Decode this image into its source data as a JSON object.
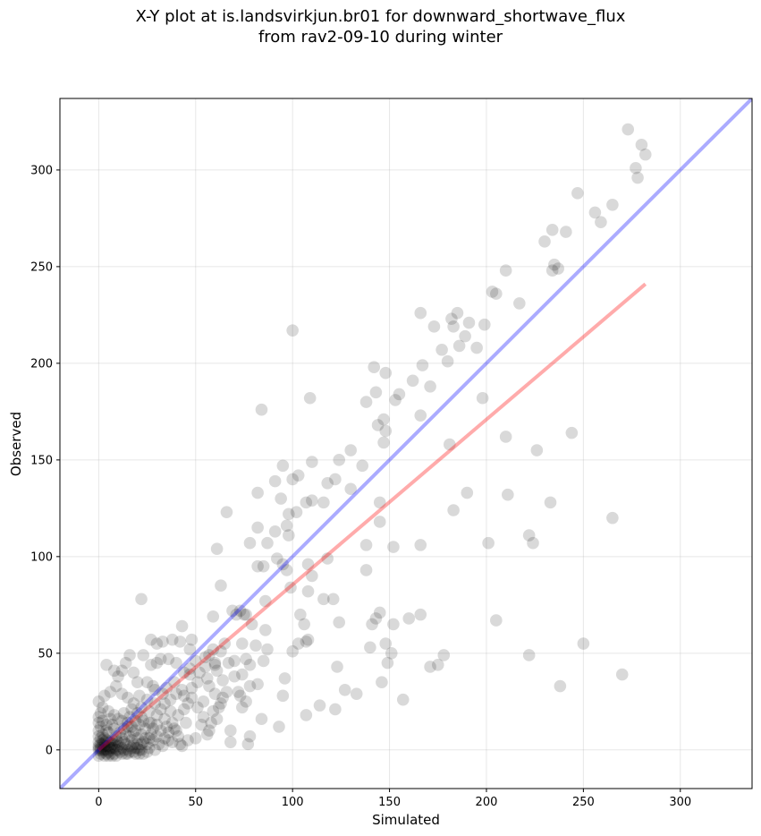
{
  "chart_data": {
    "type": "scatter",
    "title_line1": "X-Y plot at is.landsvirkjun.br01 for downward_shortwave_flux",
    "title_line2": "from rav2-09-10 during winter",
    "xlabel": "Simulated",
    "ylabel": "Observed",
    "xlim": [
      -20,
      337
    ],
    "ylim": [
      -20,
      337
    ],
    "xticks": [
      0,
      50,
      100,
      150,
      200,
      250,
      300
    ],
    "yticks": [
      0,
      50,
      100,
      150,
      200,
      250,
      300
    ],
    "grid": true,
    "point_color": "#000000",
    "identity_line": {
      "color": "#0000ff",
      "x": [
        -20,
        337
      ],
      "y": [
        -20,
        337
      ]
    },
    "fit_line": {
      "color": "#ff0000",
      "x": [
        0,
        282
      ],
      "y": [
        0,
        241
      ]
    },
    "points": [
      [
        273,
        321
      ],
      [
        280,
        313
      ],
      [
        277,
        301
      ],
      [
        282,
        308
      ],
      [
        278,
        296
      ],
      [
        247,
        288
      ],
      [
        256,
        278
      ],
      [
        265,
        282
      ],
      [
        259,
        273
      ],
      [
        230,
        263
      ],
      [
        234,
        269
      ],
      [
        241,
        268
      ],
      [
        235,
        251
      ],
      [
        237,
        249
      ],
      [
        234,
        248
      ],
      [
        210,
        248
      ],
      [
        203,
        237
      ],
      [
        205,
        236
      ],
      [
        217,
        231
      ],
      [
        166,
        226
      ],
      [
        182,
        223
      ],
      [
        185,
        226
      ],
      [
        199,
        220
      ],
      [
        191,
        221
      ],
      [
        173,
        219
      ],
      [
        177,
        207
      ],
      [
        183,
        219
      ],
      [
        180,
        201
      ],
      [
        189,
        214
      ],
      [
        186,
        209
      ],
      [
        195,
        208
      ],
      [
        100,
        217
      ],
      [
        142,
        198
      ],
      [
        148,
        195
      ],
      [
        162,
        191
      ],
      [
        167,
        199
      ],
      [
        153,
        181
      ],
      [
        155,
        184
      ],
      [
        138,
        180
      ],
      [
        143,
        185
      ],
      [
        171,
        188
      ],
      [
        166,
        173
      ],
      [
        147,
        171
      ],
      [
        144,
        168
      ],
      [
        148,
        165
      ],
      [
        147,
        159
      ],
      [
        181,
        158
      ],
      [
        198,
        182
      ],
      [
        210,
        162
      ],
      [
        244,
        164
      ],
      [
        109,
        182
      ],
      [
        84,
        176
      ],
      [
        226,
        155
      ],
      [
        110,
        149
      ],
      [
        124,
        150
      ],
      [
        130,
        155
      ],
      [
        136,
        147
      ],
      [
        95,
        147
      ],
      [
        118,
        138
      ],
      [
        122,
        140
      ],
      [
        130,
        135
      ],
      [
        91,
        139
      ],
      [
        94,
        130
      ],
      [
        100,
        140
      ],
      [
        103,
        142
      ],
      [
        107,
        128
      ],
      [
        110,
        129
      ],
      [
        116,
        128
      ],
      [
        98,
        122
      ],
      [
        91,
        113
      ],
      [
        97,
        116
      ],
      [
        98,
        111
      ],
      [
        82,
        133
      ],
      [
        66,
        123
      ],
      [
        82,
        115
      ],
      [
        102,
        123
      ],
      [
        87,
        107
      ],
      [
        183,
        124
      ],
      [
        190,
        133
      ],
      [
        211,
        132
      ],
      [
        233,
        128
      ],
      [
        145,
        128
      ],
      [
        145,
        118
      ],
      [
        138,
        106
      ],
      [
        152,
        105
      ],
      [
        166,
        106
      ],
      [
        201,
        107
      ],
      [
        222,
        111
      ],
      [
        224,
        107
      ],
      [
        265,
        120
      ],
      [
        85,
        95
      ],
      [
        82,
        95
      ],
      [
        61,
        104
      ],
      [
        78,
        107
      ],
      [
        92,
        99
      ],
      [
        95,
        96
      ],
      [
        97,
        93
      ],
      [
        110,
        90
      ],
      [
        108,
        96
      ],
      [
        118,
        99
      ],
      [
        108,
        82
      ],
      [
        99,
        84
      ],
      [
        63,
        85
      ],
      [
        86,
        77
      ],
      [
        138,
        93
      ],
      [
        121,
        78
      ],
      [
        116,
        78
      ],
      [
        104,
        70
      ],
      [
        106,
        65
      ],
      [
        124,
        66
      ],
      [
        141,
        65
      ],
      [
        152,
        65
      ],
      [
        145,
        71
      ],
      [
        143,
        68
      ],
      [
        160,
        68
      ],
      [
        166,
        70
      ],
      [
        205,
        67
      ],
      [
        73,
        72
      ],
      [
        76,
        70
      ],
      [
        75,
        70
      ],
      [
        69,
        72
      ],
      [
        71,
        70
      ],
      [
        79,
        65
      ],
      [
        59,
        69
      ],
      [
        86,
        62
      ],
      [
        65,
        55
      ],
      [
        74,
        55
      ],
      [
        81,
        54
      ],
      [
        87,
        52
      ],
      [
        78,
        44
      ],
      [
        85,
        46
      ],
      [
        103,
        55
      ],
      [
        107,
        56
      ],
      [
        108,
        57
      ],
      [
        100,
        51
      ],
      [
        151,
        50
      ],
      [
        140,
        53
      ],
      [
        148,
        55
      ],
      [
        178,
        49
      ],
      [
        171,
        43
      ],
      [
        175,
        44
      ],
      [
        222,
        49
      ],
      [
        250,
        55
      ],
      [
        123,
        43
      ],
      [
        149,
        45
      ],
      [
        60,
        45
      ],
      [
        70,
        46
      ],
      [
        76,
        47
      ],
      [
        63,
        51
      ],
      [
        59,
        52
      ],
      [
        57,
        49
      ],
      [
        55,
        48
      ],
      [
        47,
        52
      ],
      [
        43,
        64
      ],
      [
        42,
        56
      ],
      [
        38,
        57
      ],
      [
        33,
        56
      ],
      [
        30,
        55
      ],
      [
        27,
        57
      ],
      [
        48,
        57
      ],
      [
        50,
        46
      ],
      [
        52,
        40
      ],
      [
        60,
        44
      ],
      [
        56,
        37
      ],
      [
        47,
        39
      ],
      [
        40,
        45
      ],
      [
        36,
        47
      ],
      [
        32,
        47
      ],
      [
        30,
        45
      ],
      [
        27,
        44
      ],
      [
        23,
        49
      ],
      [
        16,
        49
      ],
      [
        22,
        78
      ],
      [
        14,
        45
      ],
      [
        12,
        41
      ],
      [
        8,
        41
      ],
      [
        4,
        44
      ],
      [
        10,
        38
      ],
      [
        18,
        40
      ],
      [
        20,
        35
      ],
      [
        25,
        35
      ],
      [
        28,
        33
      ],
      [
        35,
        32
      ],
      [
        40,
        29
      ],
      [
        44,
        28
      ],
      [
        46,
        24
      ],
      [
        48,
        27
      ],
      [
        54,
        25
      ],
      [
        57,
        33
      ],
      [
        60,
        29
      ],
      [
        63,
        24
      ],
      [
        66,
        30
      ],
      [
        72,
        30
      ],
      [
        73,
        28
      ],
      [
        76,
        25
      ],
      [
        74,
        22
      ],
      [
        62,
        22
      ],
      [
        54,
        17
      ],
      [
        58,
        14
      ],
      [
        53,
        13
      ],
      [
        57,
        10
      ],
      [
        50,
        6
      ],
      [
        46,
        5
      ],
      [
        42,
        3
      ],
      [
        36,
        5
      ],
      [
        33,
        2
      ],
      [
        29,
        0
      ],
      [
        25,
        3
      ],
      [
        22,
        8
      ],
      [
        19,
        10
      ],
      [
        15,
        12
      ],
      [
        12,
        15
      ],
      [
        8,
        18
      ],
      [
        5,
        20
      ],
      [
        2,
        22
      ],
      [
        0,
        25
      ],
      [
        3,
        28
      ],
      [
        6,
        30
      ],
      [
        9,
        33
      ],
      [
        12,
        29
      ],
      [
        15,
        27
      ],
      [
        18,
        24
      ],
      [
        22,
        22
      ],
      [
        26,
        20
      ],
      [
        30,
        18
      ],
      [
        34,
        16
      ],
      [
        38,
        14
      ],
      [
        41,
        18
      ],
      [
        44,
        21
      ],
      [
        37,
        26
      ],
      [
        33,
        29
      ],
      [
        29,
        31
      ],
      [
        25,
        26
      ],
      [
        21,
        28
      ],
      [
        17,
        21
      ],
      [
        13,
        19
      ],
      [
        10,
        16
      ],
      [
        7,
        13
      ],
      [
        4,
        10
      ],
      [
        2,
        8
      ],
      [
        1,
        6
      ],
      [
        0,
        4
      ],
      [
        0,
        2
      ],
      [
        0,
        0
      ],
      [
        1,
        1
      ],
      [
        2,
        3
      ],
      [
        3,
        0
      ],
      [
        4,
        2
      ],
      [
        5,
        -1
      ],
      [
        6,
        1
      ],
      [
        7,
        3
      ],
      [
        8,
        -2
      ],
      [
        9,
        0
      ],
      [
        10,
        2
      ],
      [
        11,
        -1
      ],
      [
        12,
        1
      ],
      [
        13,
        4
      ],
      [
        14,
        -2
      ],
      [
        15,
        0
      ],
      [
        16,
        2
      ],
      [
        17,
        5
      ],
      [
        18,
        -1
      ],
      [
        19,
        1
      ],
      [
        20,
        3
      ],
      [
        21,
        -2
      ],
      [
        22,
        0
      ],
      [
        23,
        4
      ],
      [
        24,
        6
      ],
      [
        25,
        -1
      ],
      [
        26,
        1
      ],
      [
        27,
        8
      ],
      [
        28,
        5
      ],
      [
        30,
        7
      ],
      [
        31,
        3
      ],
      [
        32,
        10
      ],
      [
        34,
        6
      ],
      [
        35,
        12
      ],
      [
        36,
        9
      ],
      [
        38,
        4
      ],
      [
        39,
        11
      ],
      [
        41,
        7
      ],
      [
        43,
        2
      ],
      [
        45,
        14
      ],
      [
        0,
        10
      ],
      [
        0,
        14
      ],
      [
        0,
        17
      ],
      [
        1,
        19
      ],
      [
        0,
        7
      ],
      [
        1,
        12
      ],
      [
        2,
        15
      ],
      [
        3,
        6
      ],
      [
        4,
        13
      ],
      [
        5,
        9
      ],
      [
        6,
        16
      ],
      [
        7,
        5
      ],
      [
        8,
        11
      ],
      [
        9,
        7
      ],
      [
        10,
        4
      ],
      [
        11,
        9
      ],
      [
        12,
        6
      ],
      [
        13,
        11
      ],
      [
        14,
        8
      ],
      [
        15,
        14
      ],
      [
        16,
        7
      ],
      [
        17,
        12
      ],
      [
        18,
        9
      ],
      [
        19,
        15
      ],
      [
        20,
        6
      ],
      [
        21,
        13
      ],
      [
        22,
        17
      ],
      [
        24,
        11
      ],
      [
        26,
        14
      ],
      [
        28,
        11
      ],
      [
        30,
        13
      ],
      [
        32,
        21
      ],
      [
        29,
        24
      ],
      [
        27,
        14
      ],
      [
        23,
        15
      ],
      [
        20,
        19
      ],
      [
        16,
        17
      ],
      [
        0,
        -3
      ],
      [
        1,
        -2
      ],
      [
        2,
        -1
      ],
      [
        3,
        -3
      ],
      [
        4,
        -2
      ],
      [
        5,
        -3
      ],
      [
        6,
        -2
      ],
      [
        7,
        -3
      ],
      [
        8,
        1
      ],
      [
        9,
        -3
      ],
      [
        0,
        1
      ],
      [
        1,
        0
      ],
      [
        1,
        3
      ],
      [
        2,
        0
      ],
      [
        2,
        5
      ],
      [
        3,
        2
      ],
      [
        3,
        4
      ],
      [
        4,
        0
      ],
      [
        4,
        5
      ],
      [
        5,
        2
      ],
      [
        5,
        4
      ],
      [
        6,
        0
      ],
      [
        6,
        4
      ],
      [
        7,
        1
      ],
      [
        8,
        3
      ],
      [
        9,
        5
      ],
      [
        10,
        0
      ],
      [
        11,
        3
      ],
      [
        12,
        -2
      ],
      [
        13,
        0
      ],
      [
        14,
        3
      ],
      [
        15,
        -2
      ],
      [
        16,
        -1
      ],
      [
        17,
        1
      ],
      [
        18,
        3
      ],
      [
        19,
        -2
      ],
      [
        20,
        1
      ],
      [
        21,
        0
      ],
      [
        22,
        3
      ],
      [
        23,
        -2
      ],
      [
        44,
        40
      ],
      [
        47,
        42
      ],
      [
        51,
        35
      ],
      [
        55,
        43
      ],
      [
        61,
        41
      ],
      [
        64,
        36
      ],
      [
        67,
        45
      ],
      [
        70,
        38
      ],
      [
        74,
        39
      ],
      [
        78,
        33
      ],
      [
        82,
        34
      ],
      [
        84,
        16
      ],
      [
        78,
        7
      ],
      [
        77,
        3
      ],
      [
        68,
        4
      ],
      [
        68,
        10
      ],
      [
        96,
        37
      ],
      [
        95,
        28
      ],
      [
        93,
        12
      ],
      [
        107,
        18
      ],
      [
        114,
        23
      ],
      [
        122,
        21
      ],
      [
        127,
        31
      ],
      [
        133,
        29
      ],
      [
        146,
        35
      ],
      [
        157,
        26
      ],
      [
        238,
        33
      ],
      [
        270,
        39
      ],
      [
        56,
        8
      ],
      [
        59,
        20
      ],
      [
        61,
        16
      ],
      [
        64,
        27
      ],
      [
        48,
        32
      ],
      [
        51,
        22
      ],
      [
        43,
        31
      ],
      [
        39,
        35
      ],
      [
        37,
        20
      ],
      [
        34,
        24
      ],
      [
        40,
        10
      ],
      [
        26,
        6
      ]
    ]
  }
}
